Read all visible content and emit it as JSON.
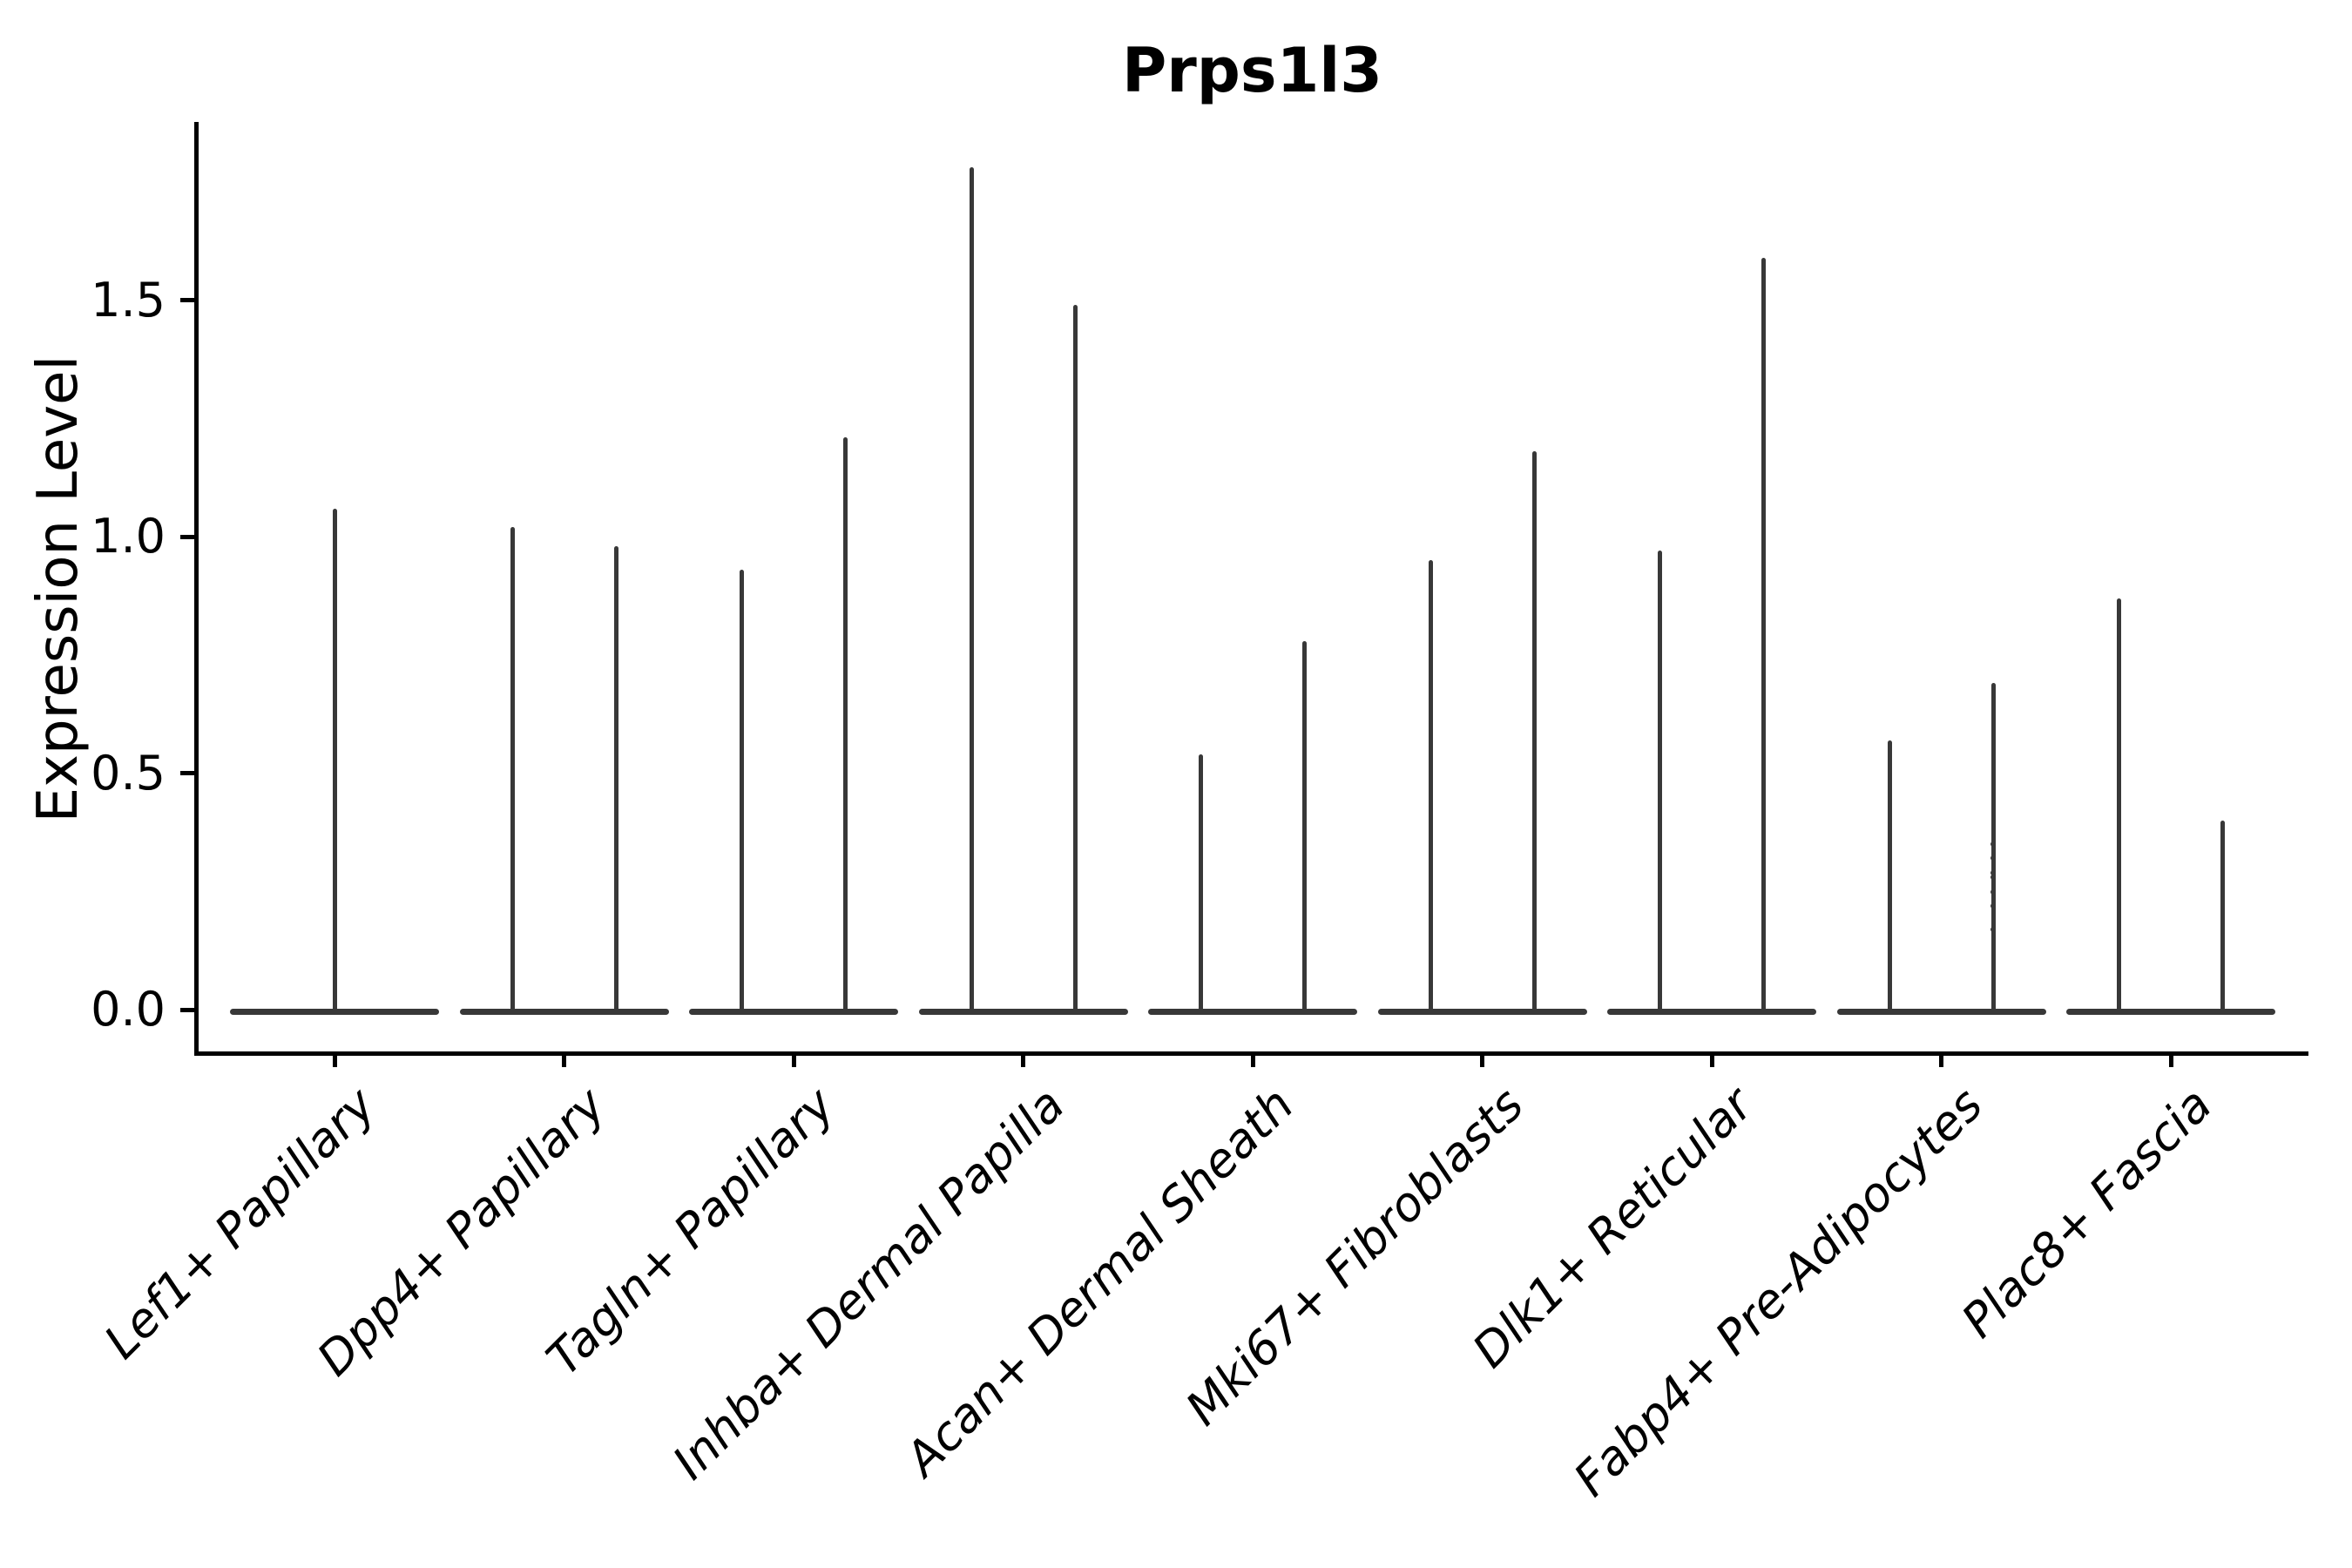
{
  "title": "Prps1l3",
  "axes": {
    "y_label": "Expression Level",
    "y_tick_labels": [
      "0.0",
      "0.5",
      "1.0",
      "1.5"
    ]
  },
  "chart_data": {
    "type": "violin",
    "title": "Prps1l3",
    "xlabel": "",
    "ylabel": "Expression Level",
    "ylim": [
      -0.09,
      1.87
    ],
    "yticks": [
      0.0,
      0.5,
      1.0,
      1.5
    ],
    "grid": "off",
    "legend": "none",
    "baseline_value": 0,
    "violin_color": "#383838",
    "axis_color": "#000000",
    "categories": [
      "Lef1+ Papillary",
      "Dpp4+ Papillary",
      "Tagln+ Papillary",
      "Inhba+ Dermal Papilla",
      "Acan+ Dermal Sheath",
      "Mki67+ Fibroblasts",
      "Dlk1+ Reticular",
      "Fabp4+ Pre-Adipocytes",
      "Plac8+ Fascia"
    ],
    "groups": [
      {
        "category": "Lef1+ Papillary",
        "violins": [
          {
            "offset": "center",
            "max": 1.06
          }
        ]
      },
      {
        "category": "Dpp4+ Papillary",
        "violins": [
          {
            "offset": "left",
            "max": 1.02
          },
          {
            "offset": "right",
            "max": 0.98
          }
        ]
      },
      {
        "category": "Tagln+ Papillary",
        "violins": [
          {
            "offset": "left",
            "max": 0.93
          },
          {
            "offset": "right",
            "max": 1.21
          }
        ]
      },
      {
        "category": "Inhba+ Dermal Papilla",
        "violins": [
          {
            "offset": "left",
            "max": 1.78
          },
          {
            "offset": "right",
            "max": 1.49
          }
        ]
      },
      {
        "category": "Acan+ Dermal Sheath",
        "violins": [
          {
            "offset": "left",
            "max": 0.54
          },
          {
            "offset": "right",
            "max": 0.78
          }
        ]
      },
      {
        "category": "Mki67+ Fibroblasts",
        "violins": [
          {
            "offset": "left",
            "max": 0.95
          },
          {
            "offset": "right",
            "max": 1.18
          }
        ]
      },
      {
        "category": "Dlk1+ Reticular",
        "violins": [
          {
            "offset": "left",
            "max": 0.97
          },
          {
            "offset": "right",
            "max": 1.59
          }
        ]
      },
      {
        "category": "Fabp4+ Pre-Adipocytes",
        "violins": [
          {
            "offset": "left",
            "max": 0.57
          },
          {
            "offset": "right",
            "max": 0.69,
            "points": [
              0.35,
              0.32,
              0.29,
              0.28,
              0.25,
              0.22,
              0.17
            ]
          }
        ]
      },
      {
        "category": "Plac8+ Fascia",
        "violins": [
          {
            "offset": "left",
            "max": 0.87
          },
          {
            "offset": "right",
            "max": 0.4
          }
        ]
      }
    ]
  }
}
